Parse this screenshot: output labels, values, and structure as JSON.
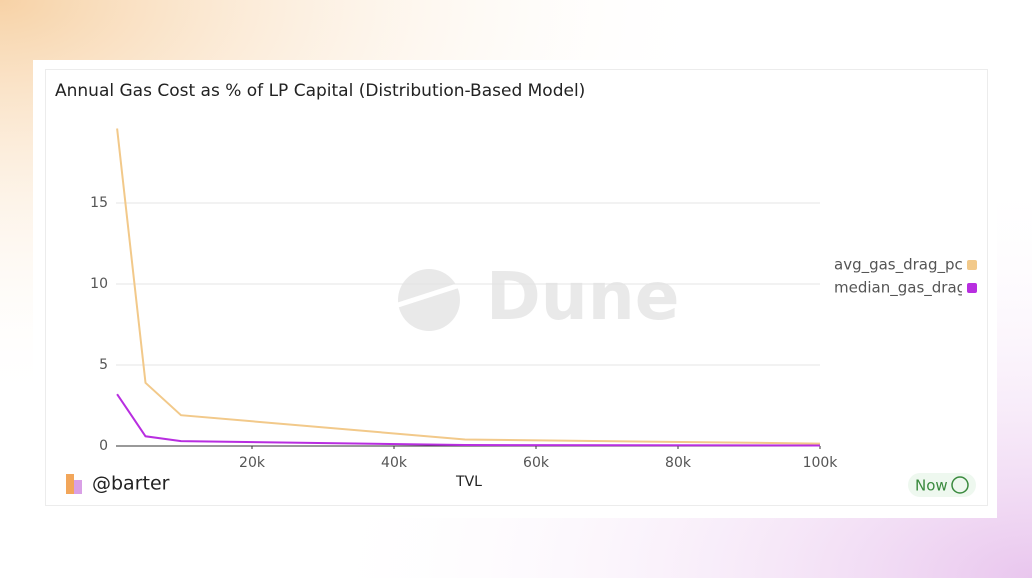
{
  "chart_data": {
    "type": "line",
    "title": "Annual Gas Cost as % of LP Capital (Distribution-Based Model)",
    "x_label": "TVL",
    "x": [
      1000,
      5000,
      10000,
      50000,
      100000
    ],
    "series": [
      {
        "name": "avg_gas_drag_pct",
        "color": "#f2c98a",
        "values": [
          19.6,
          3.9,
          1.9,
          0.4,
          0.15
        ]
      },
      {
        "name": "median_gas_drag_pct",
        "color": "#b82ee0",
        "values": [
          3.2,
          0.6,
          0.3,
          0.06,
          0.03
        ]
      }
    ],
    "xlim": [
      0,
      100000
    ],
    "xticks": [
      {
        "value": 20000,
        "label": "20k"
      },
      {
        "value": 40000,
        "label": "40k"
      },
      {
        "value": 60000,
        "label": "60k"
      },
      {
        "value": 80000,
        "label": "80k"
      },
      {
        "value": 100000,
        "label": "100k"
      }
    ],
    "ylim": [
      0,
      20
    ],
    "yticks": [
      0,
      5,
      10,
      15
    ],
    "grid": true,
    "legend": "right"
  },
  "watermark": "Dune",
  "footer": {
    "author": "@barter",
    "status": "Now"
  }
}
